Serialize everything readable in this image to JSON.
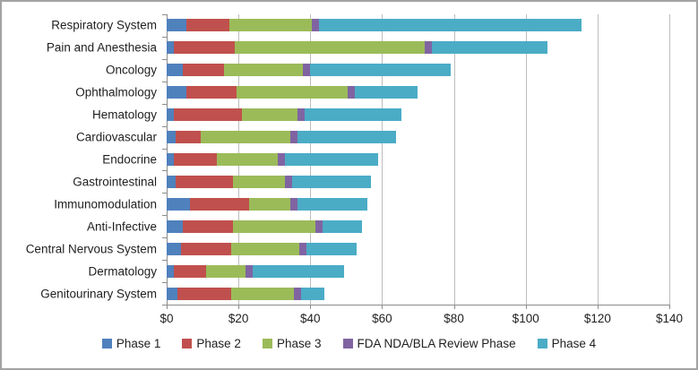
{
  "chart_data": {
    "type": "bar",
    "orientation": "horizontal",
    "stacked": true,
    "title": "",
    "xlabel": "",
    "ylabel": "",
    "xlim": [
      0,
      140
    ],
    "x_tick_values": [
      0,
      20,
      40,
      60,
      80,
      100,
      120,
      140
    ],
    "x_tick_labels": [
      "$0",
      "$20",
      "$40",
      "$60",
      "$80",
      "$100",
      "$120",
      "$140"
    ],
    "grid": true,
    "legend_position": "bottom",
    "categories": [
      "Respiratory System",
      "Pain and Anesthesia",
      "Oncology",
      "Ophthalmology",
      "Hematology",
      "Cardiovascular",
      "Endocrine",
      "Gastrointestinal",
      "Immunomodulation",
      "Anti-Infective",
      "Central Nervous System",
      "Dermatology",
      "Genitourinary System"
    ],
    "series": [
      {
        "name": "Phase 1",
        "color": "#4F81BD",
        "values": [
          5.5,
          2,
          4.5,
          5.5,
          2,
          2.5,
          2,
          2.5,
          6.5,
          4.5,
          4,
          2,
          3
        ]
      },
      {
        "name": "Phase 2",
        "color": "#C0504D",
        "values": [
          12,
          17,
          11.5,
          14,
          19,
          7,
          12,
          16,
          16.5,
          14,
          14,
          9,
          15
        ]
      },
      {
        "name": "Phase 3",
        "color": "#9BBB59",
        "values": [
          23,
          53,
          22,
          31,
          15.5,
          25,
          17,
          14.5,
          11.5,
          23,
          19,
          11,
          17.5
        ]
      },
      {
        "name": "FDA NDA/BLA Review Phase",
        "color": "#8064A2",
        "values": [
          2,
          2,
          2,
          2,
          2,
          2,
          2,
          2,
          2,
          2,
          2,
          2,
          2
        ]
      },
      {
        "name": "Phase 4",
        "color": "#4BACC6",
        "values": [
          73,
          32,
          39,
          17.5,
          27,
          27.5,
          26,
          22,
          19.5,
          11,
          14,
          25.5,
          6.5
        ]
      }
    ],
    "colors": {
      "gridline": "#BDBDBD",
      "axis": "#8C8C8C",
      "text": "#1F1F1F",
      "background": "#FFFFFF",
      "border": "#A3A3A3"
    }
  }
}
